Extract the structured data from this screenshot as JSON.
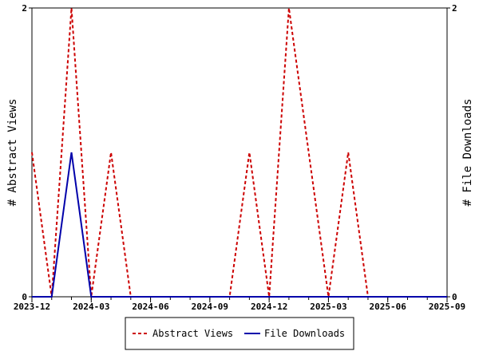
{
  "chart_data": {
    "type": "line",
    "x_tick_labels": [
      "2023-12",
      "2024-03",
      "2024-06",
      "2024-09",
      "2024-12",
      "2025-03",
      "2025-06",
      "2025-09"
    ],
    "x_month_index": [
      0,
      1,
      2,
      3,
      4,
      5,
      6,
      7,
      8,
      9,
      10,
      11,
      12,
      13,
      14,
      15,
      16,
      17,
      18,
      19,
      20,
      21
    ],
    "x_labels_months": [
      "2023-12",
      "2024-01",
      "2024-02",
      "2024-03",
      "2024-04",
      "2024-05",
      "2024-06",
      "2024-07",
      "2024-08",
      "2024-09",
      "2024-10",
      "2024-11",
      "2024-12",
      "2025-01",
      "2025-02",
      "2025-03",
      "2025-04",
      "2025-05",
      "2025-06",
      "2025-07",
      "2025-08",
      "2025-09"
    ],
    "series": [
      {
        "name": "Abstract Views",
        "color": "#cc0000",
        "dash": "dashed",
        "axis": "left",
        "values": [
          1,
          0,
          2,
          0,
          1,
          0,
          0,
          0,
          0,
          0,
          0,
          1,
          0,
          2,
          1,
          0,
          1,
          0,
          0,
          0,
          0,
          0
        ]
      },
      {
        "name": "File Downloads",
        "color": "#0000aa",
        "dash": "solid",
        "axis": "right",
        "values": [
          0,
          0,
          1,
          0,
          0,
          0,
          0,
          0,
          0,
          0,
          0,
          0,
          0,
          0,
          0,
          0,
          0,
          0,
          0,
          0,
          0,
          0
        ]
      }
    ],
    "y_left": {
      "label": "# Abstract Views",
      "ylim": [
        0,
        2
      ],
      "tick_labels": [
        "0",
        "2"
      ]
    },
    "y_right": {
      "label": "# File Downloads",
      "ylim": [
        0,
        2
      ],
      "tick_labels": [
        "0",
        "2"
      ]
    },
    "legend_placement": "bottom-center",
    "grid": false
  }
}
